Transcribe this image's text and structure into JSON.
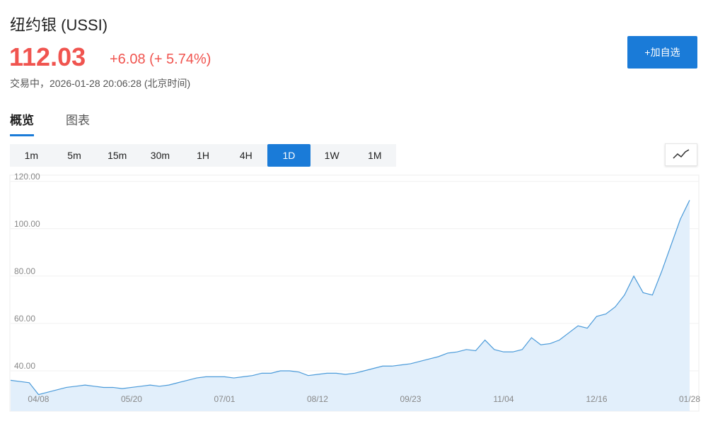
{
  "header": {
    "title": "纽约银 (USSI)",
    "price": "112.03",
    "change": "+6.08 (+ 5.74%)",
    "status": "交易中，2026-01-28 20:06:28 (北京时间)",
    "button": "+加自选"
  },
  "tabs": [
    "概览",
    "图表"
  ],
  "intervals": [
    "1m",
    "5m",
    "15m",
    "30m",
    "1H",
    "4H",
    "1D",
    "1W",
    "1M"
  ],
  "active_interval": 6,
  "chart_data": {
    "type": "line",
    "color": "#4a9ad9",
    "area_color": "#e2effb",
    "grid": true,
    "categories": [
      null,
      null,
      null,
      "04/08",
      null,
      null,
      null,
      null,
      null,
      null,
      null,
      null,
      null,
      "05/20",
      null,
      null,
      null,
      null,
      null,
      null,
      null,
      null,
      null,
      "07/01",
      null,
      null,
      null,
      null,
      null,
      null,
      null,
      null,
      null,
      "08/12",
      null,
      null,
      null,
      null,
      null,
      null,
      null,
      null,
      null,
      "09/23",
      null,
      null,
      null,
      null,
      null,
      null,
      null,
      null,
      null,
      "11/04",
      null,
      null,
      null,
      null,
      null,
      null,
      null,
      null,
      null,
      "12/16",
      null,
      null,
      null,
      null,
      null,
      null,
      null,
      null,
      null,
      "01/28"
    ],
    "values": [
      36,
      35.5,
      35,
      30,
      31,
      32,
      33,
      33.5,
      34,
      33.5,
      33,
      33,
      32.5,
      33,
      33.5,
      34,
      33.5,
      34,
      35,
      36,
      37,
      37.5,
      37.5,
      37.5,
      37,
      37.5,
      38,
      39,
      39,
      40,
      40,
      39.5,
      38,
      38.5,
      39,
      39,
      38.5,
      39,
      40,
      41,
      42,
      42,
      42.5,
      43,
      44,
      45,
      46,
      47.5,
      48,
      49,
      48.5,
      53,
      49,
      48,
      48,
      49,
      54,
      51,
      51.5,
      53,
      56,
      59,
      58,
      63,
      64,
      67,
      72,
      80,
      73,
      72,
      82,
      93,
      104,
      112.03
    ],
    "ylim": [
      23,
      122
    ],
    "yticks": [
      {
        "value": 40,
        "label": "40.00"
      },
      {
        "value": 60,
        "label": "60.00"
      },
      {
        "value": 80,
        "label": "80.00"
      },
      {
        "value": 100,
        "label": "100.00"
      },
      {
        "value": 120,
        "label": "120.00"
      }
    ]
  }
}
